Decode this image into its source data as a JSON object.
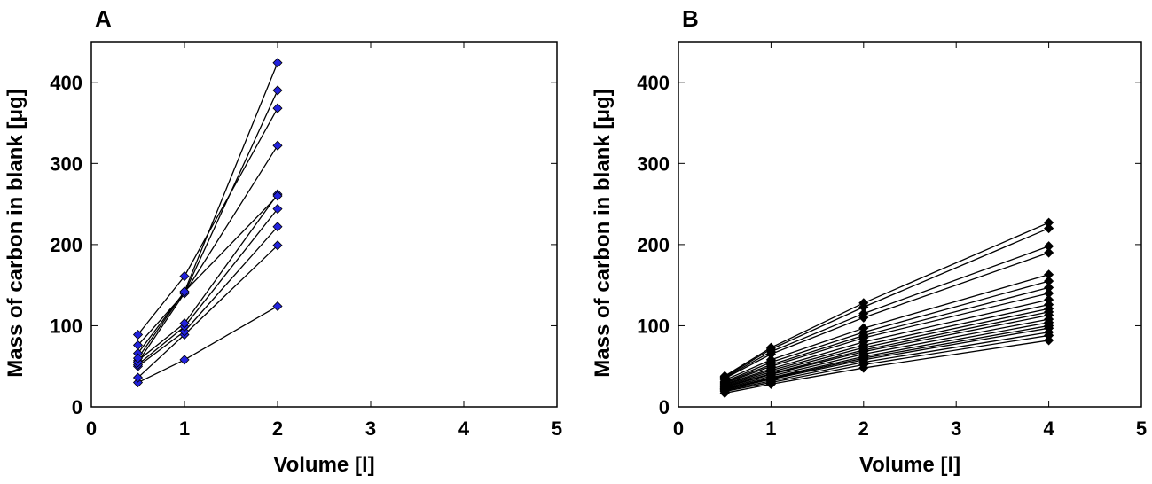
{
  "chart_data": [
    {
      "type": "line",
      "title": "A",
      "xlabel": "Volume [l]",
      "ylabel": "Mass of carbon in blank   [μg]",
      "x": [
        0.5,
        1,
        2
      ],
      "xlim": [
        0,
        5
      ],
      "xticks": [
        0,
        1,
        2,
        3,
        4,
        5
      ],
      "ylim": [
        0,
        450
      ],
      "yticks": [
        0,
        100,
        200,
        300,
        400
      ],
      "grid": false,
      "color": "#000000",
      "marker_color": "#2222dd",
      "series": [
        {
          "values": [
            30,
            58,
            124
          ]
        },
        {
          "values": [
            36,
            89,
            199
          ]
        },
        {
          "values": [
            50,
            93,
            222
          ]
        },
        {
          "values": [
            52,
            99,
            244
          ]
        },
        {
          "values": [
            57,
            103,
            262
          ]
        },
        {
          "values": [
            66,
            142,
            260
          ]
        },
        {
          "values": [
            76,
            140,
            322
          ]
        },
        {
          "values": [
            89,
            161,
            368
          ]
        },
        {
          "values": [
            55,
            140,
            390
          ]
        },
        {
          "values": [
            60,
            142,
            424
          ]
        }
      ]
    },
    {
      "type": "line",
      "title": "B",
      "xlabel": "Volume [l]",
      "ylabel": "Mass of carbon in blank [μg]",
      "x": [
        0.5,
        1,
        2,
        4
      ],
      "xlim": [
        0,
        5
      ],
      "xticks": [
        0,
        1,
        2,
        3,
        4,
        5
      ],
      "ylim": [
        0,
        450
      ],
      "yticks": [
        0,
        100,
        200,
        300,
        400
      ],
      "grid": false,
      "color": "#000000",
      "marker_color": "#000000",
      "series": [
        {
          "values": [
            17,
            28,
            48,
            82
          ]
        },
        {
          "values": [
            19,
            30,
            52,
            88
          ]
        },
        {
          "values": [
            20,
            32,
            55,
            92
          ]
        },
        {
          "values": [
            21,
            34,
            58,
            97
          ]
        },
        {
          "values": [
            22,
            35,
            60,
            100
          ]
        },
        {
          "values": [
            22,
            36,
            62,
            104
          ]
        },
        {
          "values": [
            23,
            38,
            65,
            108
          ]
        },
        {
          "values": [
            24,
            40,
            68,
            113
          ]
        },
        {
          "values": [
            25,
            41,
            70,
            117
          ]
        },
        {
          "values": [
            26,
            43,
            73,
            121
          ]
        },
        {
          "values": [
            27,
            45,
            76,
            126
          ]
        },
        {
          "values": [
            28,
            47,
            80,
            132
          ]
        },
        {
          "values": [
            29,
            50,
            85,
            140
          ]
        },
        {
          "values": [
            30,
            52,
            88,
            147
          ]
        },
        {
          "values": [
            31,
            55,
            92,
            155
          ]
        },
        {
          "values": [
            33,
            58,
            97,
            163
          ]
        },
        {
          "values": [
            35,
            65,
            110,
            190
          ]
        },
        {
          "values": [
            36,
            68,
            115,
            198
          ]
        },
        {
          "values": [
            37,
            71,
            123,
            220
          ]
        },
        {
          "values": [
            38,
            73,
            128,
            227
          ]
        }
      ]
    }
  ]
}
